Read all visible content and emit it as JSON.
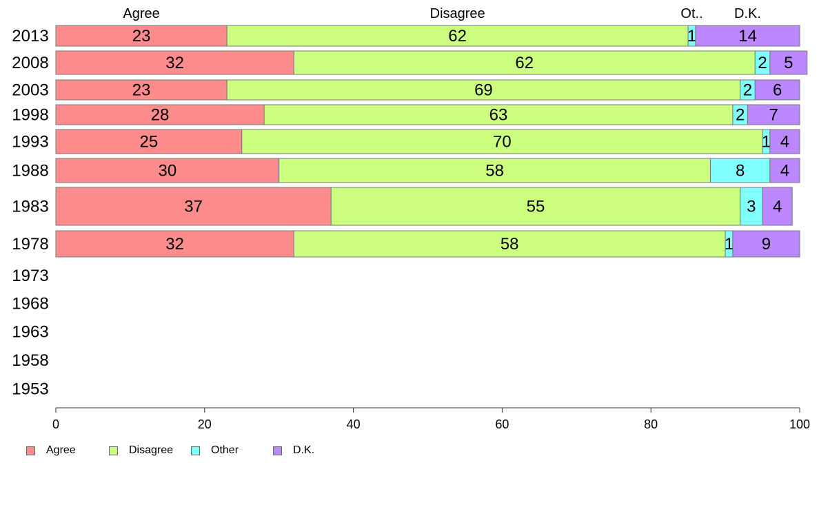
{
  "chart_data": {
    "type": "bar",
    "orientation": "horizontal",
    "stacked": true,
    "categories": [
      "2013",
      "2008",
      "2003",
      "1998",
      "1993",
      "1988",
      "1983",
      "1978",
      "1973",
      "1968",
      "1963",
      "1958",
      "1953"
    ],
    "series": [
      {
        "name": "Agree",
        "color": "#ff8c8c",
        "values": [
          23,
          32,
          23,
          28,
          25,
          30,
          37,
          32,
          null,
          null,
          null,
          null,
          null
        ]
      },
      {
        "name": "Disagree",
        "color": "#ccff80",
        "values": [
          62,
          62,
          69,
          63,
          70,
          58,
          55,
          58,
          null,
          null,
          null,
          null,
          null
        ]
      },
      {
        "name": "Other",
        "color": "#80ffff",
        "values": [
          1,
          2,
          2,
          2,
          1,
          8,
          3,
          1,
          null,
          null,
          null,
          null,
          null
        ]
      },
      {
        "name": "D.K.",
        "color": "#bb88ff",
        "values": [
          14,
          5,
          6,
          7,
          4,
          4,
          4,
          9,
          null,
          null,
          null,
          null,
          null
        ]
      }
    ],
    "top_labels": [
      "Agree",
      "Disagree",
      "Ot..",
      "D.K."
    ],
    "xlim": [
      0,
      100
    ],
    "xticks": [
      0,
      20,
      40,
      60,
      80,
      100
    ],
    "legend_position": "bottom-left",
    "grid": false
  },
  "legend": {
    "items": [
      {
        "label": "Agree",
        "color": "#ff8c8c"
      },
      {
        "label": "Disagree",
        "color": "#ccff80"
      },
      {
        "label": "Other",
        "color": "#80ffff"
      },
      {
        "label": "D.K.",
        "color": "#bb88ff"
      }
    ]
  }
}
